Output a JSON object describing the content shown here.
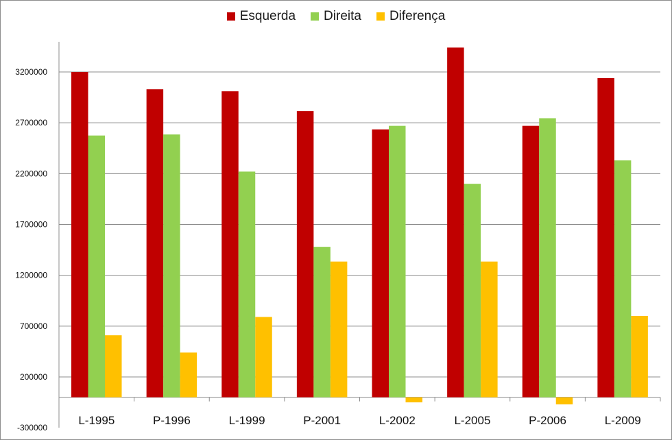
{
  "chart_data": {
    "type": "bar",
    "categories": [
      "L-1995",
      "P-1996",
      "L-1999",
      "P-2001",
      "L-2002",
      "L-2005",
      "P-2006",
      "L-2009"
    ],
    "series": [
      {
        "name": "Esquerda",
        "color": "#c00000",
        "values": [
          3200000,
          3030000,
          3010000,
          2815000,
          2635000,
          3440000,
          2670000,
          3140000
        ]
      },
      {
        "name": "Direita",
        "color": "#92d050",
        "values": [
          2575000,
          2585000,
          2220000,
          1480000,
          2670000,
          2100000,
          2745000,
          2330000
        ]
      },
      {
        "name": "Diferença",
        "color": "#ffc000",
        "values": [
          610000,
          440000,
          790000,
          1335000,
          -50000,
          1335000,
          -70000,
          800000
        ]
      }
    ],
    "y_ticks": [
      "3200000",
      "2700000",
      "2200000",
      "1700000",
      "1200000",
      "700000",
      "200000",
      "-300000"
    ],
    "ylim": [
      -300000,
      3700000
    ],
    "grid": true,
    "legend_position": "top-center",
    "title": "",
    "xlabel": "",
    "ylabel": ""
  }
}
